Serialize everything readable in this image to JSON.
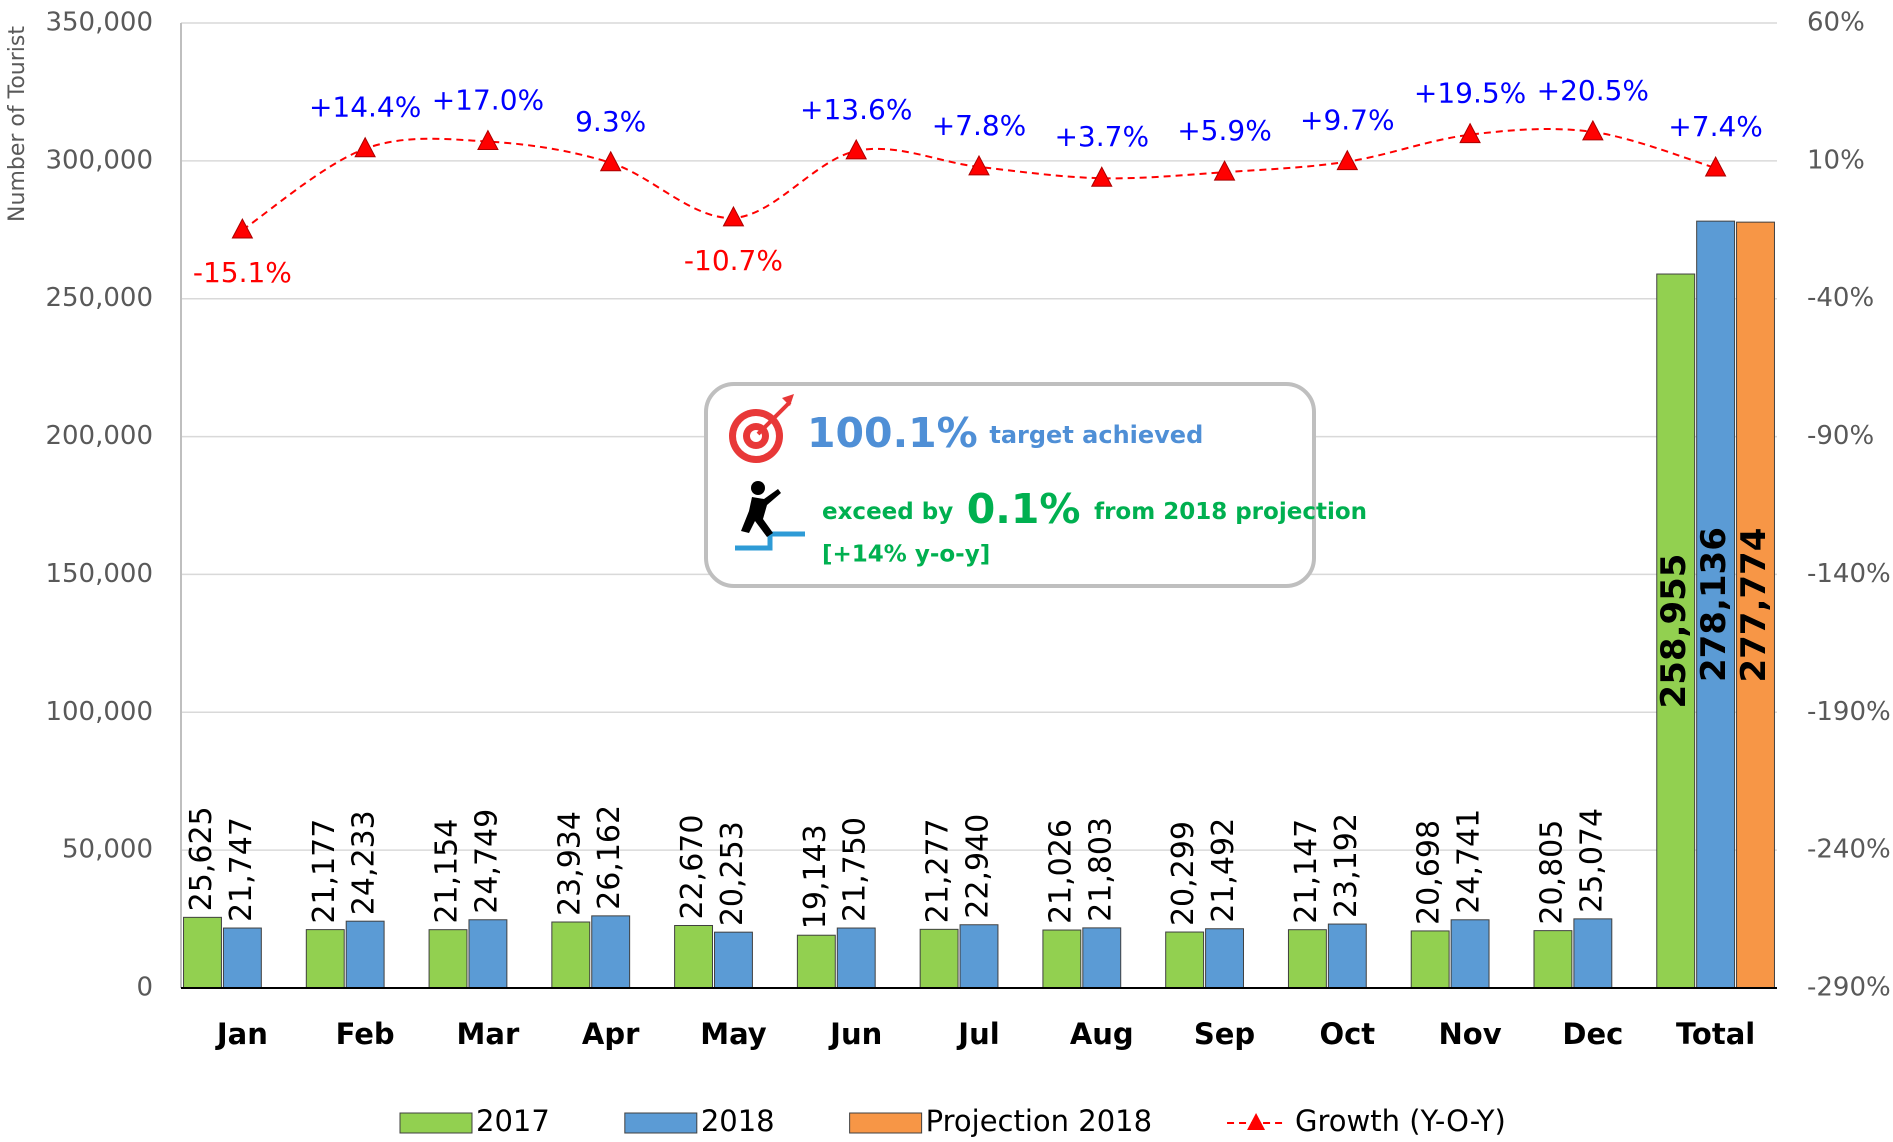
{
  "chart_data": {
    "type": "bar",
    "y_label": "Number of Tourist",
    "categories": [
      "Jan",
      "Feb",
      "Mar",
      "Apr",
      "May",
      "Jun",
      "Jul",
      "Aug",
      "Sep",
      "Oct",
      "Nov",
      "Dec",
      "Total"
    ],
    "series": [
      {
        "name": "2017",
        "color": "#92d050",
        "values": [
          25625,
          21177,
          21154,
          23934,
          22670,
          19143,
          21277,
          21026,
          20299,
          21147,
          20698,
          20805,
          258955
        ],
        "value_labels": [
          "25,625",
          "21,177",
          "21,154",
          "23,934",
          "22,670",
          "19,143",
          "21,277",
          "21,026",
          "20,299",
          "21,147",
          "20,698",
          "20,805",
          "258,955"
        ]
      },
      {
        "name": "2018",
        "color": "#5b9bd5",
        "values": [
          21747,
          24233,
          24749,
          26162,
          20253,
          21750,
          22940,
          21803,
          21492,
          23192,
          24741,
          25074,
          278136
        ],
        "value_labels": [
          "21,747",
          "24,233",
          "24,749",
          "26,162",
          "20,253",
          "21,750",
          "22,940",
          "21,803",
          "21,492",
          "23,192",
          "24,741",
          "25,074",
          "278,136"
        ]
      },
      {
        "name": "Projection 2018",
        "color": "#f79646",
        "values": [
          null,
          null,
          null,
          null,
          null,
          null,
          null,
          null,
          null,
          null,
          null,
          null,
          277774
        ],
        "value_labels": [
          null,
          null,
          null,
          null,
          null,
          null,
          null,
          null,
          null,
          null,
          null,
          null,
          "277,774"
        ]
      },
      {
        "name": "Growth (Y-O-Y)",
        "color": "#ff0000",
        "type": "line",
        "axis": "y2",
        "values": [
          -15.1,
          14.4,
          17.0,
          9.3,
          -10.7,
          13.6,
          7.8,
          3.7,
          5.9,
          9.7,
          19.5,
          20.5,
          7.4
        ],
        "value_labels": [
          "-15.1%",
          "+14.4%",
          "+17.0%",
          "9.3%",
          "-10.7%",
          "+13.6%",
          "+7.8%",
          "+3.7%",
          "+5.9%",
          "+9.7%",
          "+19.5%",
          "+20.5%",
          "+7.4%"
        ]
      }
    ],
    "ylim": [
      0,
      350000
    ],
    "yticks": [
      0,
      {
        "value": 50000,
        "label": "50,000"
      },
      {
        "value": 100000,
        "label": "100,000"
      },
      {
        "value": 150000,
        "label": "150,000"
      },
      {
        "value": 200000,
        "label": "200,000"
      },
      {
        "value": 250000,
        "label": "250,000"
      },
      {
        "value": 300000,
        "label": "300,000"
      },
      {
        "value": 350000,
        "label": "350,000"
      }
    ],
    "y2lim": [
      -290,
      60
    ],
    "y2ticks": [
      {
        "value": -290,
        "label": "-290%"
      },
      {
        "value": -240,
        "label": "-240%"
      },
      {
        "value": -190,
        "label": "-190%"
      },
      {
        "value": -140,
        "label": "-140%"
      },
      {
        "value": -90,
        "label": "-90%"
      },
      {
        "value": -40,
        "label": "-40%"
      },
      {
        "value": 10,
        "label": "10%"
      },
      {
        "value": 60,
        "label": "60%"
      }
    ],
    "grid": true,
    "legend": "bottom",
    "annotation": {
      "achieved_value": "100.1%",
      "achieved_text": "target achieved",
      "exceed_prefix": "exceed by",
      "exceed_value": "0.1%",
      "exceed_suffix": "from 2018 projection",
      "yoy": "[+14% y-o-y]"
    }
  }
}
